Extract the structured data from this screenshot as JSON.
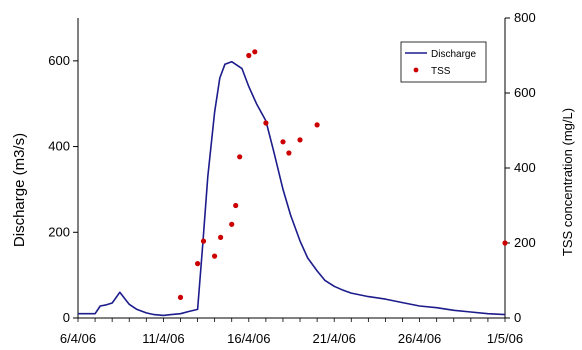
{
  "chart_data": {
    "type": "line",
    "x_axis": {
      "label": "",
      "type": "date",
      "range": [
        "2006-04-06",
        "2006-05-01"
      ],
      "ticks": [
        "6/4/06",
        "11/4/06",
        "16/4/06",
        "21/4/06",
        "26/4/06",
        "1/5/06"
      ]
    },
    "y_left": {
      "label": "Discharge  (m3/s)",
      "range": [
        0,
        700
      ],
      "ticks": [
        0,
        200,
        400,
        600
      ]
    },
    "y_right": {
      "label": "TSS concentration (mg/L)",
      "range": [
        0,
        800
      ],
      "ticks": [
        0,
        200,
        400,
        600,
        800
      ]
    },
    "legend": {
      "position": "top-right",
      "discharge_label": "Discharge",
      "tss_label": "TSS"
    },
    "grid": false,
    "colors": {
      "discharge": "#1c1c8c",
      "tss": "#cc0000"
    },
    "series": [
      {
        "name": "Discharge",
        "axis": "left",
        "style": "line",
        "points": [
          [
            "2006-04-06",
            10
          ],
          [
            "2006-04-07",
            10
          ],
          [
            "2006-04-07",
            28
          ],
          [
            "2006-04-07",
            30
          ],
          [
            "2006-04-08",
            35
          ],
          [
            "2006-04-08",
            60
          ],
          [
            "2006-04-09",
            32
          ],
          [
            "2006-04-09",
            20
          ],
          [
            "2006-04-10",
            12
          ],
          [
            "2006-04-10",
            8
          ],
          [
            "2006-04-11",
            6
          ],
          [
            "2006-04-11",
            8
          ],
          [
            "2006-04-12",
            10
          ],
          [
            "2006-04-12",
            15
          ],
          [
            "2006-04-13",
            20
          ],
          [
            "2006-04-13",
            170
          ],
          [
            "2006-04-13",
            330
          ],
          [
            "2006-04-14",
            480
          ],
          [
            "2006-04-14",
            560
          ],
          [
            "2006-04-14",
            592
          ],
          [
            "2006-04-15",
            598
          ],
          [
            "2006-04-15",
            590
          ],
          [
            "2006-04-15",
            582
          ],
          [
            "2006-04-16",
            540
          ],
          [
            "2006-04-16",
            500
          ],
          [
            "2006-04-17",
            460
          ],
          [
            "2006-04-17",
            390
          ],
          [
            "2006-04-18",
            300
          ],
          [
            "2006-04-18",
            240
          ],
          [
            "2006-04-19",
            180
          ],
          [
            "2006-04-19",
            140
          ],
          [
            "2006-04-20",
            110
          ],
          [
            "2006-04-20",
            88
          ],
          [
            "2006-04-21",
            74
          ],
          [
            "2006-04-21",
            66
          ],
          [
            "2006-04-22",
            58
          ],
          [
            "2006-04-23",
            50
          ],
          [
            "2006-04-24",
            44
          ],
          [
            "2006-04-25",
            36
          ],
          [
            "2006-04-26",
            28
          ],
          [
            "2006-04-27",
            24
          ],
          [
            "2006-04-28",
            18
          ],
          [
            "2006-04-29",
            14
          ],
          [
            "2006-04-30",
            10
          ],
          [
            "2006-05-01",
            8
          ]
        ]
      },
      {
        "name": "TSS",
        "axis": "right",
        "style": "points",
        "points": [
          [
            "2006-04-12",
            55
          ],
          [
            "2006-04-13",
            145
          ],
          [
            "2006-04-13",
            205
          ],
          [
            "2006-04-14",
            165
          ],
          [
            "2006-04-14",
            215
          ],
          [
            "2006-04-15",
            250
          ],
          [
            "2006-04-15",
            300
          ],
          [
            "2006-04-15",
            430
          ],
          [
            "2006-04-16",
            700
          ],
          [
            "2006-04-16",
            710
          ],
          [
            "2006-04-17",
            520
          ],
          [
            "2006-04-18",
            470
          ],
          [
            "2006-04-18",
            440
          ],
          [
            "2006-04-19",
            475
          ],
          [
            "2006-04-20",
            515
          ],
          [
            "2006-05-01",
            200
          ]
        ]
      }
    ]
  }
}
